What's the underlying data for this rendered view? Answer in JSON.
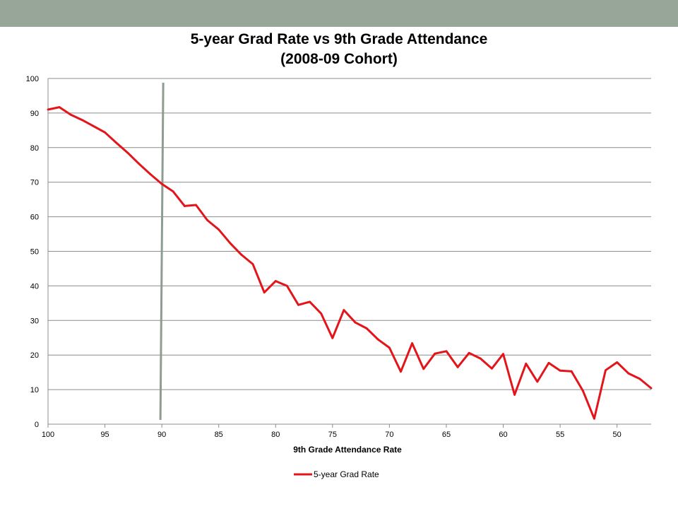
{
  "colors": {
    "band": "#98a69a",
    "series": "#e3151a",
    "marker_line": "#8f9c92",
    "grid": "#8c8c8c"
  },
  "chart_data": {
    "type": "line",
    "title": "5-year Grad Rate vs 9th Grade Attendance",
    "subtitle": "(2008-09 Cohort)",
    "xlabel": "9th Grade Attendance Rate",
    "ylabel": "",
    "xlim": [
      100,
      47
    ],
    "x_reversed": true,
    "ylim": [
      0,
      100
    ],
    "xticks": [
      100,
      95,
      90,
      85,
      80,
      75,
      70,
      65,
      60,
      55,
      50
    ],
    "yticks": [
      0,
      10,
      20,
      30,
      40,
      50,
      60,
      70,
      80,
      90,
      100
    ],
    "grid": "horizontal",
    "legend": "bottom",
    "reference_line_x": 90,
    "series": [
      {
        "name": "5-year Grad Rate",
        "x": [
          100,
          99,
          98,
          97,
          96,
          95,
          94,
          93,
          92,
          91,
          90,
          89,
          88,
          87,
          86,
          85,
          84,
          83,
          82,
          81,
          80,
          79,
          78,
          77,
          76,
          75,
          74,
          73,
          72,
          71,
          70,
          69,
          68,
          67,
          66,
          65,
          64,
          63,
          62,
          61,
          60,
          59,
          58,
          57,
          56,
          55,
          54,
          53,
          52,
          51,
          50,
          49,
          48,
          47
        ],
        "values": [
          91,
          91.7,
          89.5,
          88,
          86.2,
          84.4,
          81.4,
          78.5,
          75.3,
          72.3,
          69.5,
          67.3,
          63.1,
          63.4,
          59,
          56.3,
          52.4,
          49,
          46.3,
          38.1,
          41.4,
          40,
          34.5,
          35.4,
          32,
          24.9,
          33,
          29.4,
          27.7,
          24.5,
          22.1,
          15.2,
          23.4,
          16,
          20.4,
          21.1,
          16.5,
          20.6,
          19,
          16.1,
          20.3,
          8.5,
          17.5,
          12.3,
          17.7,
          15.5,
          15.3,
          9.7,
          1.6,
          15.6,
          17.9,
          14.7,
          13.1,
          10.4
        ]
      }
    ]
  }
}
